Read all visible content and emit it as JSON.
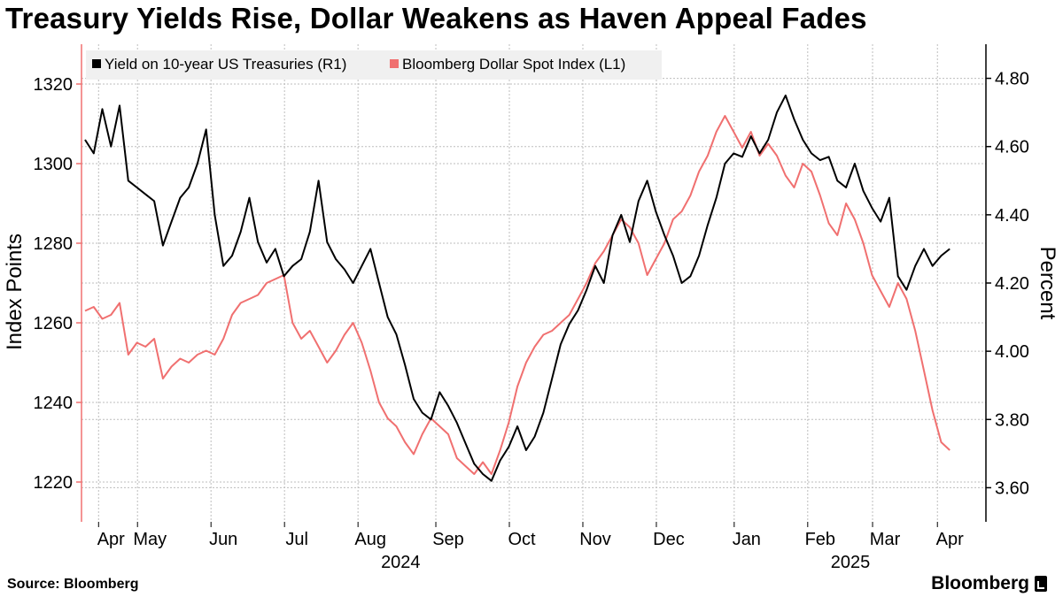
{
  "title": "Treasury Yields Rise, Dollar Weakens as Haven Appeal Fades",
  "source": "Source: Bloomberg",
  "brand": "Bloomberg",
  "colors": {
    "yield": "#000000",
    "dollar": "#f07070",
    "grid": "#bdbdbd",
    "axisLeft": "#f07070",
    "axisRight": "#000000"
  },
  "chart_data": {
    "type": "line",
    "title": "Treasury Yields Rise, Dollar Weakens as Haven Appeal Fades",
    "left_axis": {
      "label": "Index Points",
      "min": 1210,
      "max": 1330,
      "ticks": [
        1220,
        1240,
        1260,
        1280,
        1300,
        1320
      ]
    },
    "right_axis": {
      "label": "Percent",
      "min": 3.5,
      "max": 4.9,
      "ticks": [
        "3.60",
        "3.80",
        "4.00",
        "4.20",
        "4.40",
        "4.60",
        "4.80"
      ]
    },
    "x_range": [
      0,
      101
    ],
    "month_ticks": [
      {
        "label": "Apr",
        "x": 3
      },
      {
        "label": "May",
        "x": 7.5
      },
      {
        "label": "Jun",
        "x": 16
      },
      {
        "label": "Jul",
        "x": 24.5
      },
      {
        "label": "Aug",
        "x": 33
      },
      {
        "label": "Sep",
        "x": 42
      },
      {
        "label": "Oct",
        "x": 50.5
      },
      {
        "label": "Nov",
        "x": 59
      },
      {
        "label": "Dec",
        "x": 67.5
      },
      {
        "label": "Jan",
        "x": 76.5
      },
      {
        "label": "Feb",
        "x": 85
      },
      {
        "label": "Mar",
        "x": 92.5
      },
      {
        "label": "Apr",
        "x": 100
      }
    ],
    "year_labels": [
      {
        "label": "2024",
        "x": 36.5
      },
      {
        "label": "2025",
        "x": 88.5
      }
    ],
    "legend": [
      "Yield on 10-year US Treasuries (R1)",
      "Bloomberg Dollar Spot Index (L1)"
    ],
    "series": [
      {
        "name": "Yield on 10-year US Treasuries (R1)",
        "axis": "right",
        "x": [
          0,
          1,
          2,
          3,
          4,
          5,
          6,
          7,
          8,
          9,
          10,
          11,
          12,
          13,
          14,
          15,
          16,
          17,
          18,
          19,
          20,
          21,
          22,
          23,
          24,
          25,
          26,
          27,
          28,
          29,
          30,
          31,
          32,
          33,
          34,
          35,
          36,
          37,
          38,
          39,
          40,
          41,
          42,
          43,
          44,
          45,
          46,
          47,
          48,
          49,
          50,
          51,
          52,
          53,
          54,
          55,
          56,
          57,
          58,
          59,
          60,
          61,
          62,
          63,
          64,
          65,
          66,
          67,
          68,
          69,
          70,
          71,
          72,
          73,
          74,
          75,
          76,
          77,
          78,
          79,
          80,
          81,
          82,
          83,
          84,
          85,
          86,
          87,
          88,
          89,
          90,
          91,
          92,
          93,
          94,
          95,
          96,
          97,
          98,
          99,
          100
        ],
        "values": [
          4.62,
          4.58,
          4.71,
          4.6,
          4.72,
          4.5,
          4.48,
          4.46,
          4.44,
          4.31,
          4.38,
          4.45,
          4.48,
          4.55,
          4.65,
          4.4,
          4.25,
          4.28,
          4.35,
          4.45,
          4.32,
          4.26,
          4.3,
          4.22,
          4.25,
          4.27,
          4.35,
          4.5,
          4.32,
          4.27,
          4.24,
          4.2,
          4.25,
          4.3,
          4.2,
          4.1,
          4.05,
          3.96,
          3.86,
          3.82,
          3.8,
          3.88,
          3.84,
          3.79,
          3.73,
          3.67,
          3.64,
          3.62,
          3.68,
          3.72,
          3.78,
          3.71,
          3.75,
          3.82,
          3.92,
          4.02,
          4.08,
          4.12,
          4.18,
          4.25,
          4.2,
          4.34,
          4.4,
          4.32,
          4.44,
          4.5,
          4.41,
          4.34,
          4.28,
          4.2,
          4.22,
          4.28,
          4.37,
          4.45,
          4.55,
          4.58,
          4.57,
          4.63,
          4.58,
          4.62,
          4.7,
          4.75,
          4.68,
          4.62,
          4.58,
          4.56,
          4.57,
          4.5,
          4.48,
          4.55,
          4.47,
          4.42,
          4.38,
          4.45,
          4.22,
          4.18,
          4.25,
          4.3,
          4.25,
          4.28,
          4.3
        ]
      },
      {
        "name": "Bloomberg Dollar Spot Index (L1)",
        "axis": "left",
        "x": [
          0,
          1,
          2,
          3,
          4,
          5,
          6,
          7,
          8,
          9,
          10,
          11,
          12,
          13,
          14,
          15,
          16,
          17,
          18,
          19,
          20,
          21,
          22,
          23,
          24,
          25,
          26,
          27,
          28,
          29,
          30,
          31,
          32,
          33,
          34,
          35,
          36,
          37,
          38,
          39,
          40,
          41,
          42,
          43,
          44,
          45,
          46,
          47,
          48,
          49,
          50,
          51,
          52,
          53,
          54,
          55,
          56,
          57,
          58,
          59,
          60,
          61,
          62,
          63,
          64,
          65,
          66,
          67,
          68,
          69,
          70,
          71,
          72,
          73,
          74,
          75,
          76,
          77,
          78,
          79,
          80,
          81,
          82,
          83,
          84,
          85,
          86,
          87,
          88,
          89,
          90,
          91,
          92,
          93,
          94,
          95,
          96,
          97,
          98,
          99,
          100
        ],
        "values": [
          1263,
          1264,
          1261,
          1262,
          1265,
          1252,
          1255,
          1254,
          1256,
          1246,
          1249,
          1251,
          1250,
          1252,
          1253,
          1252,
          1256,
          1262,
          1265,
          1266,
          1267,
          1270,
          1271,
          1272,
          1260,
          1256,
          1258,
          1254,
          1250,
          1253,
          1257,
          1260,
          1255,
          1248,
          1240,
          1236,
          1234,
          1230,
          1227,
          1232,
          1236,
          1234,
          1232,
          1226,
          1224,
          1222,
          1225,
          1222,
          1228,
          1235,
          1244,
          1250,
          1254,
          1257,
          1258,
          1260,
          1262,
          1266,
          1270,
          1275,
          1278,
          1282,
          1286,
          1284,
          1280,
          1272,
          1276,
          1280,
          1286,
          1288,
          1292,
          1298,
          1302,
          1308,
          1312,
          1308,
          1304,
          1308,
          1302,
          1305,
          1302,
          1297,
          1294,
          1300,
          1298,
          1292,
          1285,
          1282,
          1290,
          1286,
          1280,
          1272,
          1268,
          1264,
          1270,
          1266,
          1258,
          1248,
          1238,
          1230,
          1228
        ]
      }
    ]
  }
}
